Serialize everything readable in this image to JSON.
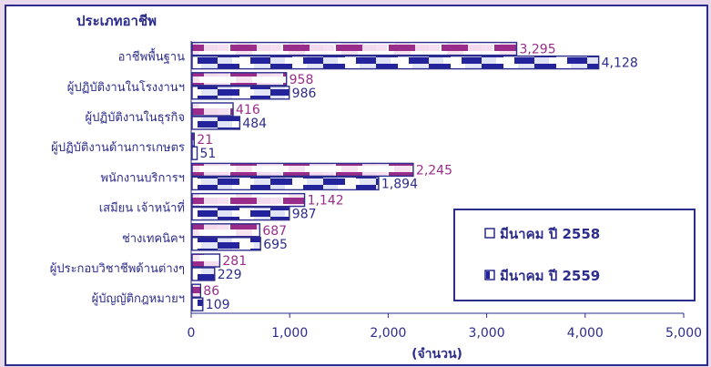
{
  "chart_data": {
    "type": "bar",
    "orientation": "horizontal",
    "category_axis_title": "ประเภทอาชีพ",
    "xlabel": "(จำนวน)",
    "xlim": [
      0,
      5000
    ],
    "xticks": [
      "0",
      "1,000",
      "2,000",
      "3,000",
      "4,000",
      "5,000"
    ],
    "xtick_values": [
      0,
      1000,
      2000,
      3000,
      4000,
      5000
    ],
    "grid": false,
    "legend_position": "bottom-right",
    "categories": [
      "อาชีพพื้นฐาน",
      "ผู้ปฏิบัติงานในโรงงานฯ",
      "ผู้ปฏิบัติงานในธุรกิจ",
      "ผู้ปฏิบัติงานด้านการเกษตร",
      "พนักงานบริการฯ",
      "เสมียน เจ้าหน้าที่",
      "ช่างเทคนิคฯ",
      "ผู้ประกอบวิชาชีพด้านต่างๆ",
      "ผู้บัญญัติกฎหมายฯ"
    ],
    "series": [
      {
        "name": "มีนาคม ปี 2558",
        "values": [
          3295,
          958,
          416,
          21,
          2245,
          1142,
          687,
          281,
          86
        ],
        "labels": [
          "3,295",
          "958",
          "416",
          "21",
          "2,245",
          "1,142",
          "687",
          "281",
          "86"
        ],
        "color": "#9a2d8a"
      },
      {
        "name": "มีนาคม ปี 2559",
        "values": [
          4128,
          986,
          484,
          51,
          1894,
          987,
          695,
          229,
          109
        ],
        "labels": [
          "4,128",
          "986",
          "484",
          "51",
          "1,894",
          "987",
          "695",
          "229",
          "109"
        ],
        "color": "#2c2c8c"
      }
    ]
  }
}
